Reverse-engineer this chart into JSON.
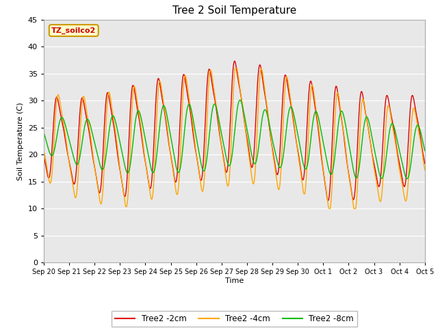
{
  "title": "Tree 2 Soil Temperature",
  "ylabel": "Soil Temperature (C)",
  "xlabel": "Time",
  "annotation": "TZ_soilco2",
  "ylim": [
    0,
    45
  ],
  "plot_bg_color": "#e8e8e8",
  "line_colors": {
    "2cm": "#dd0000",
    "4cm": "#ffa500",
    "8cm": "#00bb00"
  },
  "xtick_labels": [
    "Sep 20",
    "Sep 21",
    "Sep 22",
    "Sep 23",
    "Sep 24",
    "Sep 25",
    "Sep 26",
    "Sep 27",
    "Sep 28",
    "Sep 29",
    "Sep 30",
    "Oct 1",
    "Oct 2",
    "Oct 3",
    "Oct 4",
    "Oct 5"
  ],
  "legend_labels": [
    "Tree2 -2cm",
    "Tree2 -4cm",
    "Tree2 -8cm"
  ],
  "num_days": 15,
  "yticks": [
    0,
    5,
    10,
    15,
    20,
    25,
    30,
    35,
    40,
    45
  ]
}
